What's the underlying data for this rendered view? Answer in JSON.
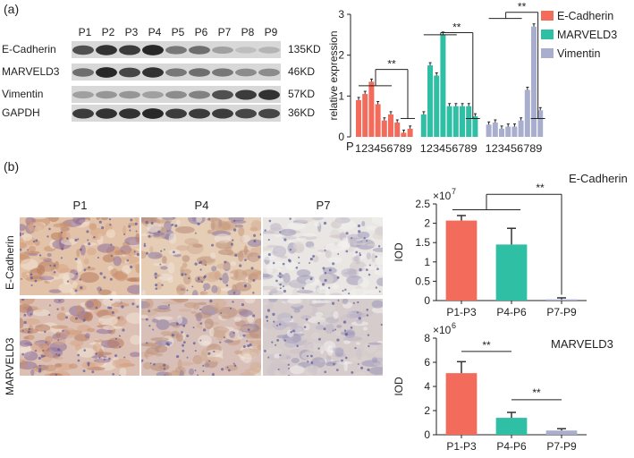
{
  "panel_a": {
    "label": "(a)",
    "lanes": [
      "P1",
      "P2",
      "P3",
      "P4",
      "P5",
      "P6",
      "P7",
      "P8",
      "P9"
    ],
    "rows": [
      {
        "name": "E-Cadherin",
        "kd": "135KD",
        "intensity": [
          0.75,
          0.9,
          0.85,
          0.95,
          0.55,
          0.6,
          0.35,
          0.2,
          0.25
        ]
      },
      {
        "name": "MARVELD3",
        "kd": "46KD",
        "intensity": [
          0.6,
          0.95,
          0.8,
          0.9,
          0.55,
          0.6,
          0.55,
          0.45,
          0.45
        ]
      },
      {
        "name": "Vimentin",
        "kd": "57KD",
        "intensity": [
          0.35,
          0.4,
          0.4,
          0.35,
          0.45,
          0.5,
          0.75,
          0.85,
          0.9
        ]
      },
      {
        "name": "GAPDH",
        "kd": "36KD",
        "intensity": [
          0.85,
          0.9,
          0.9,
          0.95,
          0.85,
          0.85,
          0.85,
          0.8,
          0.8
        ]
      }
    ]
  },
  "panel_b": {
    "label": "(b)",
    "columns": [
      "P1",
      "P4",
      "P7"
    ],
    "rows": [
      "E-Cadherin",
      "MARVELD3"
    ]
  },
  "chart_data": [
    {
      "type": "bar",
      "ylabel": "relative expression",
      "xlabel": "P",
      "ylim": [
        0,
        3
      ],
      "yticks": [
        "0",
        "1",
        "2",
        "3"
      ],
      "categories": [
        "1",
        "2",
        "3",
        "4",
        "5",
        "6",
        "7",
        "8",
        "9"
      ],
      "series": [
        {
          "name": "E-Cadherin",
          "color": "#f26b5b",
          "values": [
            0.9,
            1.05,
            1.35,
            0.8,
            0.4,
            0.55,
            0.35,
            0.1,
            0.2
          ]
        },
        {
          "name": "MARVELD3",
          "color": "#2ebfa5",
          "values": [
            0.55,
            1.75,
            1.5,
            2.5,
            0.75,
            0.75,
            0.75,
            0.75,
            0.5
          ]
        },
        {
          "name": "Vimentin",
          "color": "#a9aece",
          "values": [
            0.3,
            0.35,
            0.2,
            0.25,
            0.25,
            0.4,
            1.15,
            2.7,
            0.65
          ]
        }
      ],
      "annotations": [
        "**",
        "**",
        "**"
      ],
      "legend": "right"
    },
    {
      "type": "bar",
      "title": "E-Cadherin",
      "ylabel": "IOD",
      "multiplier": "×10",
      "multiplier_exp": "7",
      "ylim": [
        0,
        2.5
      ],
      "yticks": [
        "0",
        "0.5",
        "1",
        "1.5",
        "2",
        "2.5"
      ],
      "categories": [
        "P1-P3",
        "P4-P6",
        "P7-P9"
      ],
      "values": [
        2.07,
        1.45,
        0.03
      ],
      "errors": [
        0.13,
        0.42,
        0.04
      ],
      "colors": [
        "#f26b5b",
        "#2ebfa5",
        "#a9aece"
      ],
      "annotations": [
        "**"
      ]
    },
    {
      "type": "bar",
      "title": "MARVELD3",
      "ylabel": "IOD",
      "multiplier": "×10",
      "multiplier_exp": "6",
      "ylim": [
        0,
        8
      ],
      "yticks": [
        "0",
        "2",
        "4",
        "6",
        "8"
      ],
      "categories": [
        "P1-P3",
        "P4-P6",
        "P7-P9"
      ],
      "values": [
        5.1,
        1.4,
        0.35
      ],
      "errors": [
        0.95,
        0.45,
        0.15
      ],
      "colors": [
        "#f26b5b",
        "#2ebfa5",
        "#a9aece"
      ],
      "annotations": [
        "**",
        "**"
      ]
    }
  ]
}
